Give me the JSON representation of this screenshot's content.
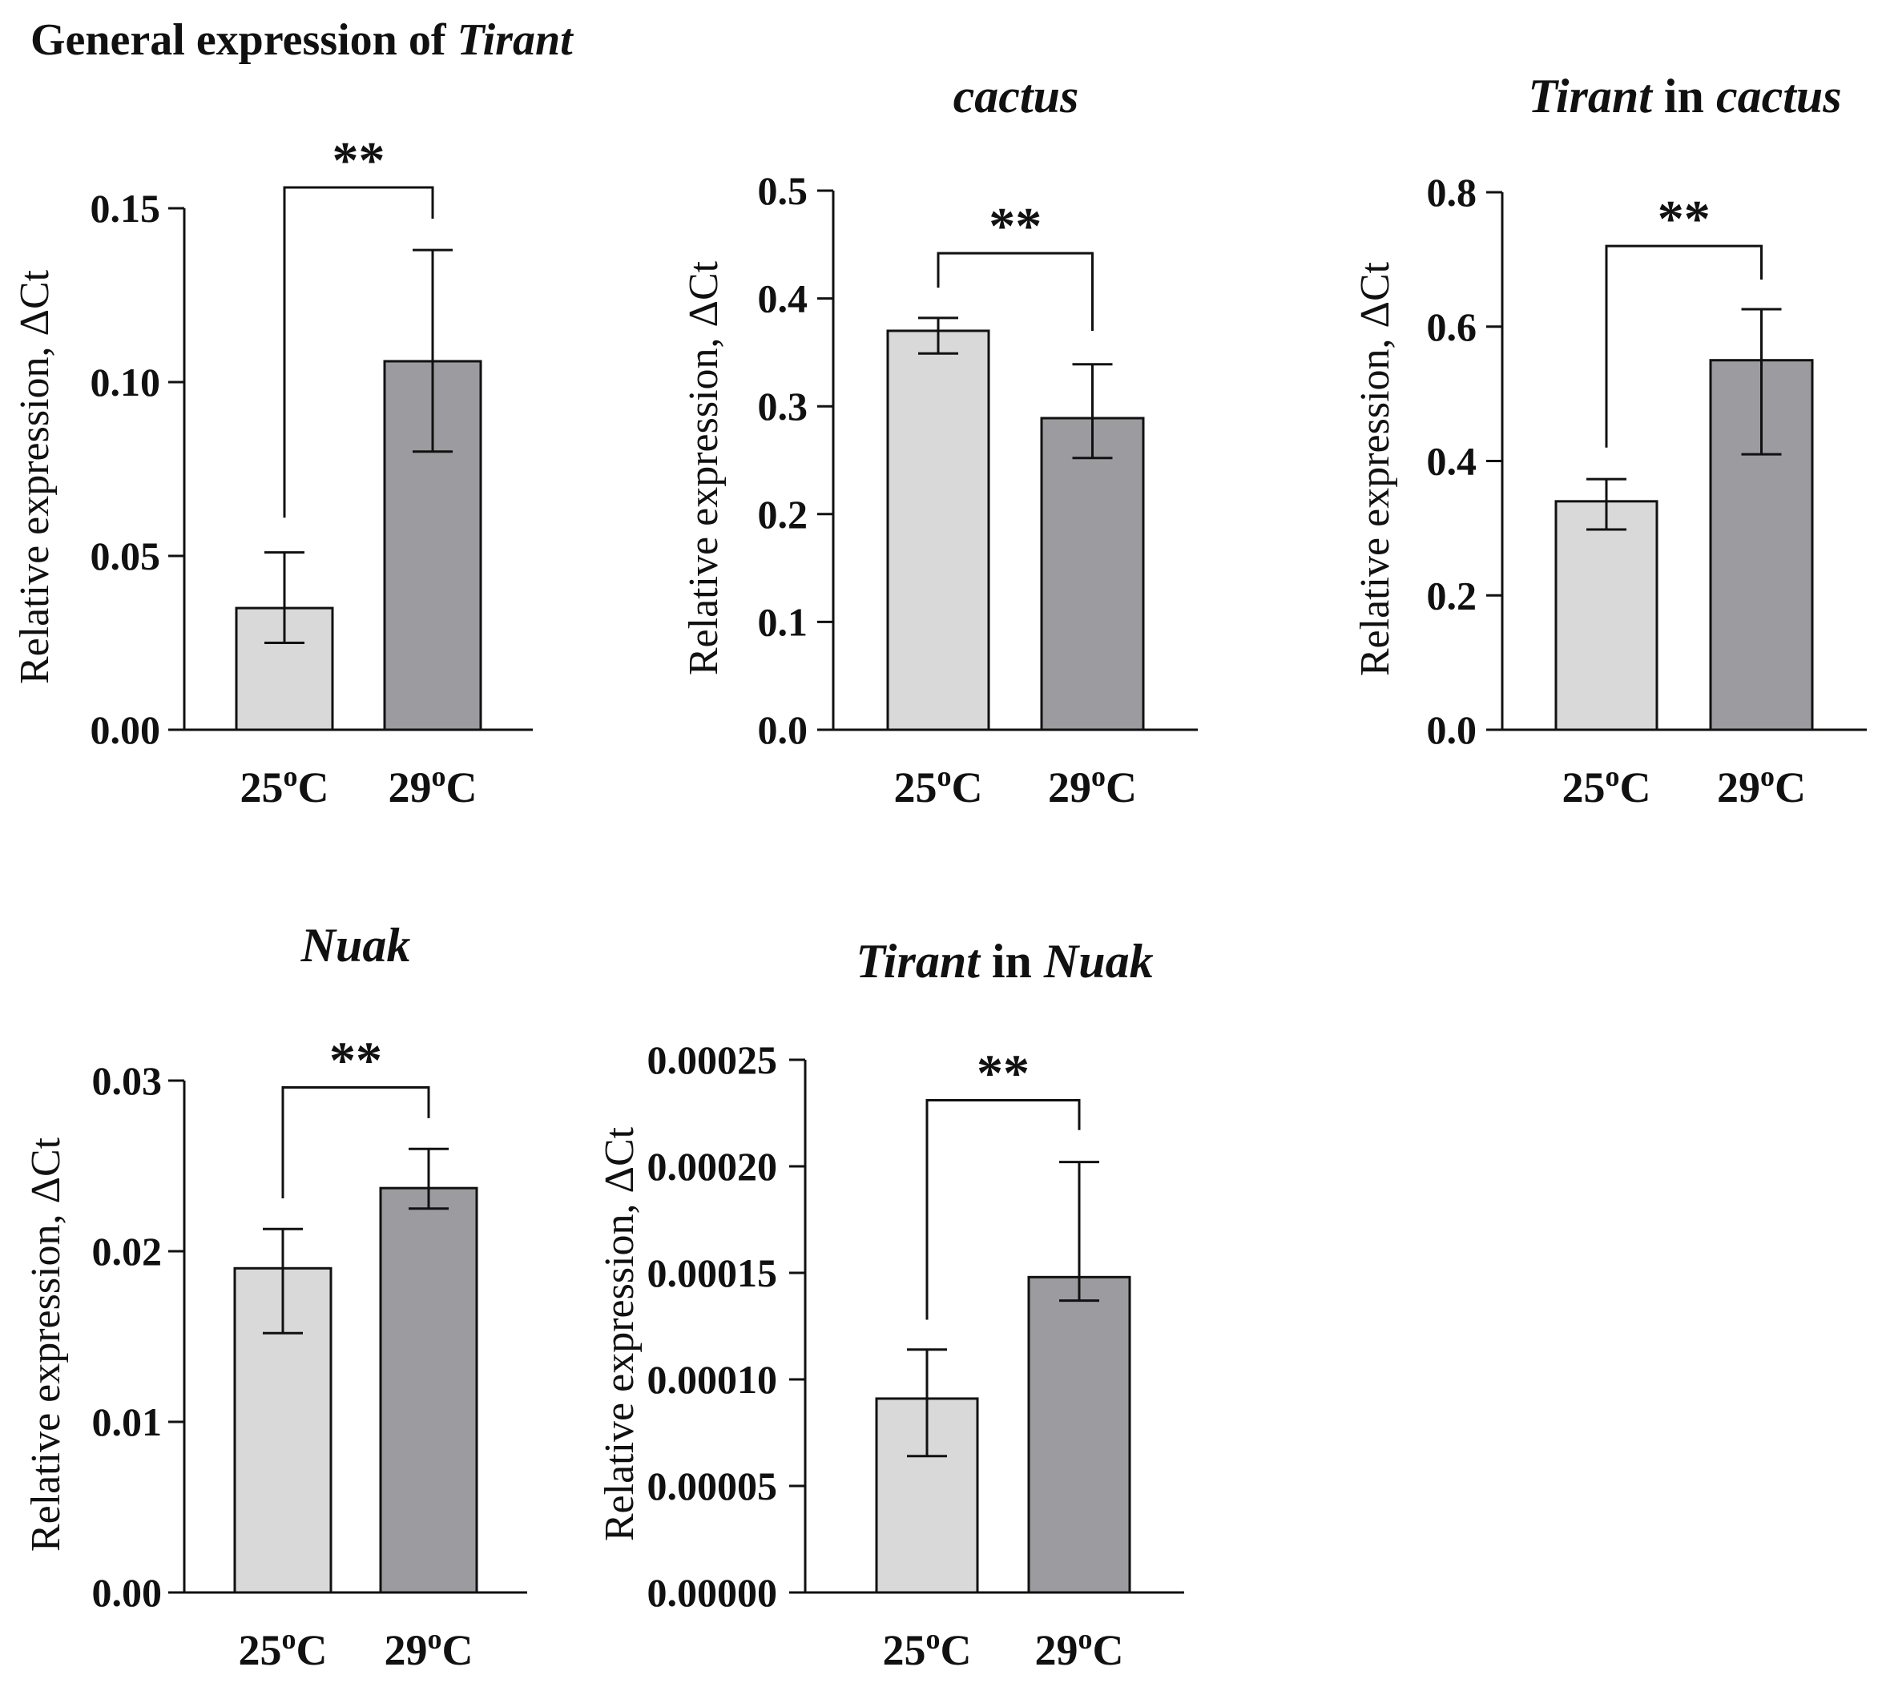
{
  "figure_title": {
    "prefix": "General expression of ",
    "italic": "Tirant"
  },
  "colors": {
    "light_bar": "#d9d9d9",
    "dark_bar": "#9c9ca0",
    "ink": "#111111"
  },
  "chart_data": [
    {
      "type": "bar",
      "id": "tirant-general",
      "title_parts": [],
      "categories": [
        "25",
        "29"
      ],
      "category_suffix_sup": "o",
      "category_suffix": "C",
      "values": [
        0.035,
        0.106
      ],
      "err_low": [
        0.025,
        0.08
      ],
      "err_high": [
        0.051,
        0.138
      ],
      "ylabel": "Relative expression, ΔCt",
      "ylim": [
        0,
        0.15
      ],
      "yticks": [
        "0.00",
        "0.05",
        "0.10",
        "0.15"
      ],
      "significance": "**",
      "bracket_top": 0.156,
      "bracket_left_start": 0.061,
      "bracket_right_start": 0.147
    },
    {
      "type": "bar",
      "id": "cactus",
      "title_parts": [
        {
          "text": "cactus",
          "italic": true
        }
      ],
      "categories": [
        "25",
        "29"
      ],
      "category_suffix_sup": "o",
      "category_suffix": "C",
      "values": [
        0.37,
        0.289
      ],
      "err_low": [
        0.349,
        0.252
      ],
      "err_high": [
        0.382,
        0.339
      ],
      "ylabel": "Relative expression, ΔCt",
      "ylim": [
        0,
        0.5
      ],
      "yticks": [
        "0.0",
        "0.1",
        "0.2",
        "0.3",
        "0.4",
        "0.5"
      ],
      "significance": "**",
      "bracket_top": 0.442,
      "bracket_left_start": 0.41,
      "bracket_right_start": 0.37
    },
    {
      "type": "bar",
      "id": "tirant-in-cactus",
      "title_parts": [
        {
          "text": "Tirant",
          "italic": true
        },
        {
          "text": " in ",
          "italic": false
        },
        {
          "text": "cactus",
          "italic": true
        }
      ],
      "categories": [
        "25",
        "29"
      ],
      "category_suffix_sup": "o",
      "category_suffix": "C",
      "values": [
        0.34,
        0.55
      ],
      "err_low": [
        0.298,
        0.41
      ],
      "err_high": [
        0.373,
        0.626
      ],
      "ylabel": "Relative expression, ΔCt",
      "ylim": [
        0,
        0.8
      ],
      "yticks": [
        "0.0",
        "0.2",
        "0.4",
        "0.6",
        "0.8"
      ],
      "significance": "**",
      "bracket_top": 0.72,
      "bracket_left_start": 0.42,
      "bracket_right_start": 0.67
    },
    {
      "type": "bar",
      "id": "nuak",
      "title_parts": [
        {
          "text": "Nuak",
          "italic": true
        }
      ],
      "categories": [
        "25",
        "29"
      ],
      "category_suffix_sup": "o",
      "category_suffix": "C",
      "values": [
        0.019,
        0.0237
      ],
      "err_low": [
        0.0152,
        0.0225
      ],
      "err_high": [
        0.0213,
        0.026
      ],
      "ylabel": "Relative expression, ΔCt",
      "ylim": [
        0,
        0.03
      ],
      "yticks": [
        "0.00",
        "0.01",
        "0.02",
        "0.03"
      ],
      "significance": "**",
      "bracket_top": 0.0296,
      "bracket_left_start": 0.0231,
      "bracket_right_start": 0.0278
    },
    {
      "type": "bar",
      "id": "tirant-in-nuak",
      "title_parts": [
        {
          "text": "Tirant",
          "italic": true
        },
        {
          "text": " in ",
          "italic": false
        },
        {
          "text": "Nuak",
          "italic": true
        }
      ],
      "categories": [
        "25",
        "29"
      ],
      "category_suffix_sup": "o",
      "category_suffix": "C",
      "values": [
        9.1e-05,
        0.000148
      ],
      "err_low": [
        6.4e-05,
        0.000137
      ],
      "err_high": [
        0.000114,
        0.000202
      ],
      "ylabel": "Relative expression, ΔCt",
      "ylim": [
        0,
        0.00025
      ],
      "yticks": [
        "0.00000",
        "0.00005",
        "0.00010",
        "0.00015",
        "0.00020",
        "0.00025"
      ],
      "significance": "**",
      "bracket_top": 0.000231,
      "bracket_left_start": 0.000128,
      "bracket_right_start": 0.000217
    }
  ]
}
